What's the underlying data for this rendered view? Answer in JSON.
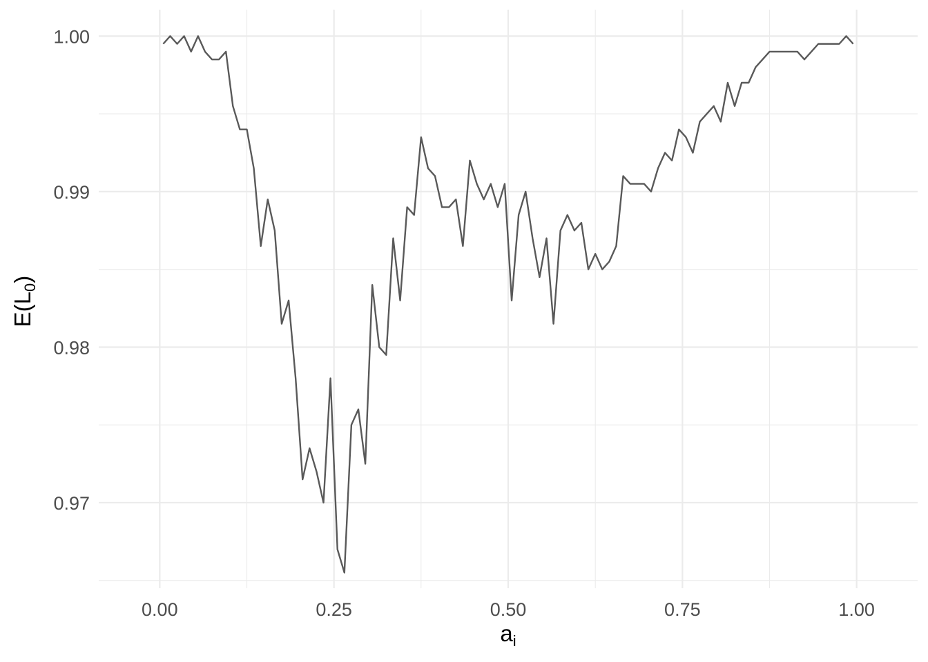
{
  "chart_data": {
    "type": "line",
    "title": "",
    "xlabel": {
      "main": "a",
      "sub": "i"
    },
    "ylabel": {
      "pre": "E(L",
      "sub": "0",
      "post": ")"
    },
    "xlim": [
      -0.0875,
      1.0875
    ],
    "ylim": [
      0.9645,
      1.0017
    ],
    "x_ticks": [
      0,
      0.25,
      0.5,
      0.75,
      1
    ],
    "x_tick_labels": [
      "0.00",
      "0.25",
      "0.50",
      "0.75",
      "1.00"
    ],
    "x_minor": [
      0.125,
      0.375,
      0.625,
      0.875
    ],
    "y_ticks": [
      0.97,
      0.98,
      0.99,
      1.0
    ],
    "y_tick_labels": [
      "0.97",
      "0.98",
      "0.99",
      "1.00"
    ],
    "y_minor": [
      0.965,
      0.975,
      0.985,
      0.995
    ],
    "grid": true,
    "line_color": "#595959",
    "series": [
      {
        "x": [
          0.005,
          0.015,
          0.025,
          0.035,
          0.045,
          0.055,
          0.065,
          0.075,
          0.085,
          0.095,
          0.105,
          0.115,
          0.125,
          0.135,
          0.145,
          0.155,
          0.165,
          0.175,
          0.185,
          0.195,
          0.205,
          0.215,
          0.225,
          0.235,
          0.245,
          0.255,
          0.265,
          0.275,
          0.285,
          0.295,
          0.305,
          0.315,
          0.325,
          0.335,
          0.345,
          0.355,
          0.365,
          0.375,
          0.385,
          0.395,
          0.405,
          0.415,
          0.425,
          0.435,
          0.445,
          0.455,
          0.465,
          0.475,
          0.485,
          0.495,
          0.505,
          0.515,
          0.525,
          0.535,
          0.545,
          0.555,
          0.565,
          0.575,
          0.585,
          0.595,
          0.605,
          0.615,
          0.625,
          0.635,
          0.645,
          0.655,
          0.665,
          0.675,
          0.685,
          0.695,
          0.705,
          0.715,
          0.725,
          0.735,
          0.745,
          0.755,
          0.765,
          0.775,
          0.785,
          0.795,
          0.805,
          0.815,
          0.825,
          0.835,
          0.845,
          0.855,
          0.865,
          0.875,
          0.885,
          0.895,
          0.905,
          0.915,
          0.925,
          0.935,
          0.945,
          0.955,
          0.965,
          0.975,
          0.985,
          0.995
        ],
        "y": [
          0.9995,
          1.0,
          0.9995,
          1.0,
          0.999,
          1.0,
          0.999,
          0.9985,
          0.9985,
          0.999,
          0.9955,
          0.994,
          0.994,
          0.9915,
          0.9865,
          0.9895,
          0.9875,
          0.9815,
          0.983,
          0.978,
          0.9715,
          0.9735,
          0.972,
          0.97,
          0.978,
          0.967,
          0.9655,
          0.975,
          0.976,
          0.9725,
          0.984,
          0.98,
          0.9795,
          0.987,
          0.983,
          0.989,
          0.9885,
          0.9935,
          0.9915,
          0.991,
          0.989,
          0.989,
          0.9895,
          0.9865,
          0.992,
          0.9905,
          0.9895,
          0.9905,
          0.989,
          0.9905,
          0.983,
          0.9885,
          0.99,
          0.987,
          0.9845,
          0.987,
          0.9815,
          0.9875,
          0.9885,
          0.9875,
          0.988,
          0.985,
          0.986,
          0.985,
          0.9855,
          0.9865,
          0.991,
          0.9905,
          0.9905,
          0.9905,
          0.99,
          0.9915,
          0.9925,
          0.992,
          0.994,
          0.9935,
          0.9925,
          0.9945,
          0.995,
          0.9955,
          0.9945,
          0.997,
          0.9955,
          0.997,
          0.997,
          0.998,
          0.9985,
          0.999,
          0.999,
          0.999,
          0.999,
          0.999,
          0.9985,
          0.999,
          0.9995,
          0.9995,
          0.9995,
          0.9995,
          1.0,
          0.9995
        ]
      }
    ]
  }
}
